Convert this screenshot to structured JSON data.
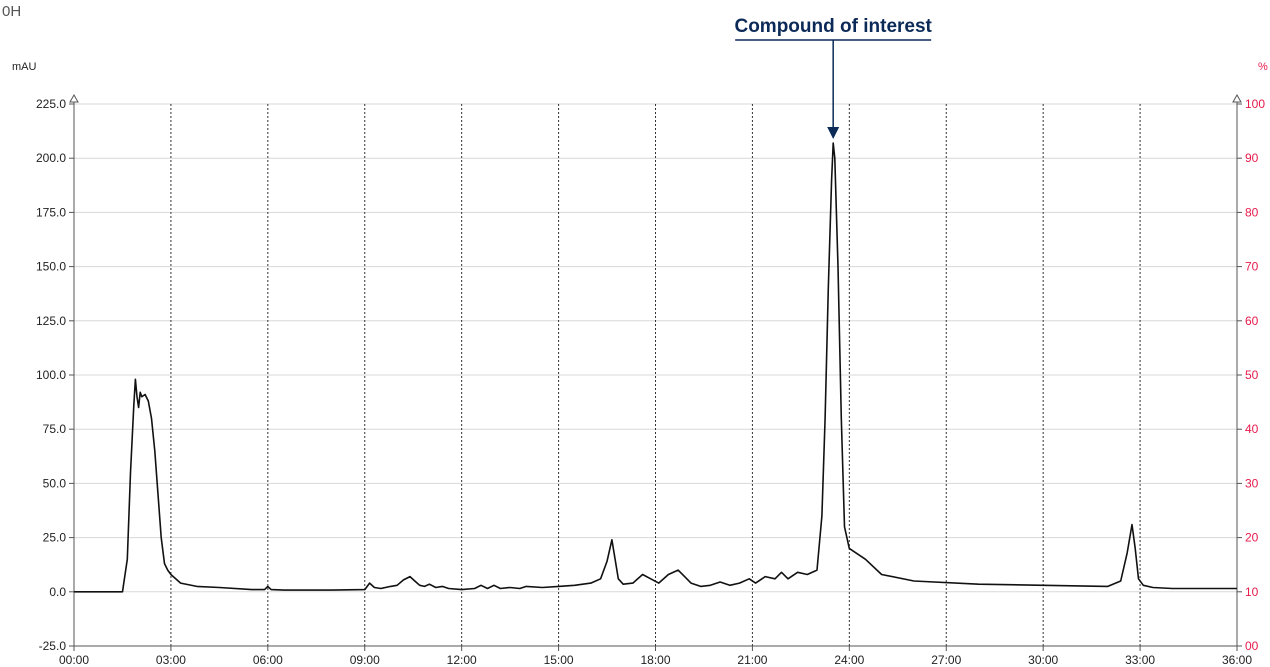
{
  "corner_text": "0H",
  "chart_data": {
    "type": "line",
    "title": "",
    "xlabel": "",
    "ylabel": "mAU",
    "y2label": "%",
    "xlim": [
      0,
      36
    ],
    "ylim": [
      -25,
      225
    ],
    "y2lim": [
      0,
      100
    ],
    "grid": {
      "horizontal": true,
      "vertical": true
    },
    "x_ticks": [
      {
        "value": 0,
        "label": "00:00"
      },
      {
        "value": 3,
        "label": "03:00"
      },
      {
        "value": 6,
        "label": "06:00"
      },
      {
        "value": 9,
        "label": "09:00"
      },
      {
        "value": 12,
        "label": "12:00"
      },
      {
        "value": 15,
        "label": "15:00"
      },
      {
        "value": 18,
        "label": "18:00"
      },
      {
        "value": 21,
        "label": "21:00"
      },
      {
        "value": 24,
        "label": "24:00"
      },
      {
        "value": 27,
        "label": "27:00"
      },
      {
        "value": 30,
        "label": "30:00"
      },
      {
        "value": 33,
        "label": "33:00"
      },
      {
        "value": 36,
        "label": "36:00"
      }
    ],
    "y_ticks": [
      {
        "value": -25,
        "label": "-25.0"
      },
      {
        "value": 0,
        "label": "0.0"
      },
      {
        "value": 25,
        "label": "25.0"
      },
      {
        "value": 50,
        "label": "50.0"
      },
      {
        "value": 75,
        "label": "75.0"
      },
      {
        "value": 100,
        "label": "100.0"
      },
      {
        "value": 125,
        "label": "125.0"
      },
      {
        "value": 150,
        "label": "150.0"
      },
      {
        "value": 175,
        "label": "175.0"
      },
      {
        "value": 200,
        "label": "200.0"
      },
      {
        "value": 225,
        "label": "225.0"
      }
    ],
    "y2_ticks": [
      {
        "value": 0,
        "label": "00"
      },
      {
        "value": 10,
        "label": "10"
      },
      {
        "value": 20,
        "label": "20"
      },
      {
        "value": 30,
        "label": "30"
      },
      {
        "value": 40,
        "label": "40"
      },
      {
        "value": 50,
        "label": "50"
      },
      {
        "value": 60,
        "label": "60"
      },
      {
        "value": 70,
        "label": "70"
      },
      {
        "value": 80,
        "label": "80"
      },
      {
        "value": 90,
        "label": "90"
      },
      {
        "value": 100,
        "label": "100"
      }
    ],
    "series": [
      {
        "color": "#111111",
        "x": [
          0,
          1.5,
          1.65,
          1.75,
          1.85,
          1.9,
          1.95,
          2.0,
          2.05,
          2.1,
          2.2,
          2.3,
          2.4,
          2.5,
          2.6,
          2.7,
          2.8,
          2.9,
          3.0,
          3.3,
          3.8,
          4.5,
          5.5,
          5.9,
          6.0,
          6.1,
          6.5,
          8.0,
          9.0,
          9.15,
          9.3,
          9.5,
          9.8,
          10.0,
          10.2,
          10.4,
          10.55,
          10.7,
          10.85,
          11.0,
          11.2,
          11.4,
          11.6,
          12.0,
          12.4,
          12.6,
          12.8,
          13.0,
          13.2,
          13.5,
          13.8,
          14.0,
          14.5,
          15.0,
          15.5,
          16.0,
          16.3,
          16.5,
          16.65,
          16.75,
          16.85,
          17.0,
          17.3,
          17.6,
          17.85,
          18.1,
          18.4,
          18.7,
          18.9,
          19.1,
          19.4,
          19.7,
          20.0,
          20.3,
          20.6,
          20.9,
          21.1,
          21.4,
          21.7,
          21.9,
          22.1,
          22.4,
          22.7,
          23.0,
          23.15,
          23.25,
          23.35,
          23.45,
          23.5,
          23.55,
          23.65,
          23.75,
          23.85,
          24.0,
          24.2,
          24.5,
          25.0,
          26.0,
          28.0,
          30.0,
          32.0,
          32.4,
          32.6,
          32.75,
          32.85,
          32.95,
          33.1,
          33.4,
          34.0,
          35.0,
          36.0
        ],
        "y": [
          0,
          0,
          15,
          55,
          86,
          98,
          90,
          85,
          92,
          90,
          91,
          88,
          80,
          65,
          45,
          25,
          13,
          10,
          8,
          4,
          2.5,
          2,
          1,
          1,
          2.5,
          1,
          0.8,
          0.8,
          1,
          4,
          2,
          1.5,
          2.5,
          3,
          5.5,
          7,
          5,
          3,
          2.5,
          3.5,
          2,
          2.5,
          1.5,
          1,
          1.5,
          3,
          1.5,
          3,
          1.5,
          2,
          1.5,
          2.5,
          2,
          2.5,
          3,
          4,
          6,
          14,
          24,
          15,
          6,
          3.5,
          4,
          8,
          6,
          4,
          8,
          10,
          7,
          4,
          2.5,
          3,
          4.5,
          3,
          4,
          6,
          4,
          7,
          6,
          9,
          6,
          9,
          8,
          10,
          35,
          80,
          140,
          190,
          207,
          200,
          150,
          80,
          30,
          20,
          18,
          15,
          8,
          5,
          3.5,
          3,
          2.5,
          5,
          18,
          31,
          20,
          6,
          3,
          2,
          1.5,
          1.5,
          1.5
        ]
      }
    ],
    "annotations": [
      {
        "text": "Compound of interest",
        "x": 23.5,
        "y": 207
      }
    ]
  }
}
